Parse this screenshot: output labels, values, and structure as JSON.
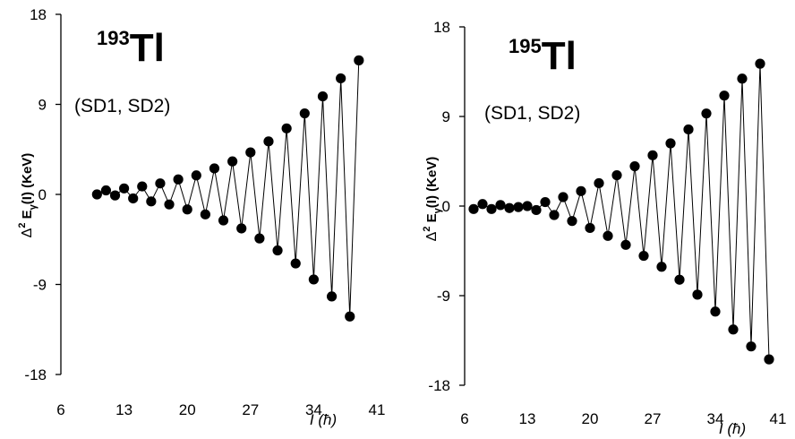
{
  "chart_data": [
    {
      "type": "scatter",
      "nucleus_mass": "193",
      "nucleus_element": "Tl",
      "band_label": "(SD1, SD2)",
      "ylabel_prefix": "Δ",
      "ylabel_sup": "2",
      "ylabel_main": " E",
      "ylabel_sub": "γ",
      "ylabel_rest": "(I) (KeV)",
      "xlabel_main": "I",
      "xlabel_unit": " (ħ)",
      "xlim": [
        6,
        41
      ],
      "ylim": [
        -18,
        18
      ],
      "xticks": [
        "6",
        "13",
        "20",
        "27",
        "34",
        "41"
      ],
      "yticks": [
        "-18",
        "-9",
        "0",
        "9",
        "18"
      ],
      "points": [
        [
          10,
          0.0
        ],
        [
          11,
          0.4
        ],
        [
          12,
          -0.1
        ],
        [
          13,
          0.6
        ],
        [
          14,
          -0.4
        ],
        [
          15,
          0.8
        ],
        [
          16,
          -0.7
        ],
        [
          17,
          1.1
        ],
        [
          18,
          -1.0
        ],
        [
          19,
          1.5
        ],
        [
          20,
          -1.5
        ],
        [
          21,
          1.9
        ],
        [
          22,
          -2.0
        ],
        [
          23,
          2.6
        ],
        [
          24,
          -2.6
        ],
        [
          25,
          3.3
        ],
        [
          26,
          -3.4
        ],
        [
          27,
          4.2
        ],
        [
          28,
          -4.4
        ],
        [
          29,
          5.3
        ],
        [
          30,
          -5.6
        ],
        [
          31,
          6.6
        ],
        [
          32,
          -6.9
        ],
        [
          33,
          8.1
        ],
        [
          34,
          -8.5
        ],
        [
          35,
          9.8
        ],
        [
          36,
          -10.2
        ],
        [
          37,
          11.6
        ],
        [
          38,
          -12.2
        ],
        [
          39,
          13.4
        ]
      ]
    },
    {
      "type": "scatter",
      "nucleus_mass": "195",
      "nucleus_element": "Tl",
      "band_label": "(SD1, SD2)",
      "ylabel_prefix": "Δ",
      "ylabel_sup": "2",
      "ylabel_main": " E",
      "ylabel_sub": "γ",
      "ylabel_rest": "(I) (KeV)",
      "xlabel_main": "I",
      "xlabel_unit": " (ħ)",
      "xlim": [
        6,
        41
      ],
      "ylim": [
        -18,
        18
      ],
      "xticks": [
        "6",
        "13",
        "20",
        "27",
        "34",
        "41"
      ],
      "yticks": [
        "-18",
        "-9",
        "0",
        "9",
        "18"
      ],
      "points": [
        [
          7,
          -0.3
        ],
        [
          8,
          0.2
        ],
        [
          9,
          -0.3
        ],
        [
          10,
          0.1
        ],
        [
          11,
          -0.2
        ],
        [
          12,
          -0.1
        ],
        [
          13,
          0.0
        ],
        [
          14,
          -0.4
        ],
        [
          15,
          0.4
        ],
        [
          16,
          -0.9
        ],
        [
          17,
          0.9
        ],
        [
          18,
          -1.5
        ],
        [
          19,
          1.5
        ],
        [
          20,
          -2.2
        ],
        [
          21,
          2.3
        ],
        [
          22,
          -3.0
        ],
        [
          23,
          3.1
        ],
        [
          24,
          -3.9
        ],
        [
          25,
          4.0
        ],
        [
          26,
          -5.0
        ],
        [
          27,
          5.1
        ],
        [
          28,
          -6.1
        ],
        [
          29,
          6.3
        ],
        [
          30,
          -7.4
        ],
        [
          31,
          7.7
        ],
        [
          32,
          -8.9
        ],
        [
          33,
          9.3
        ],
        [
          34,
          -10.6
        ],
        [
          35,
          11.1
        ],
        [
          36,
          -12.4
        ],
        [
          37,
          12.8
        ],
        [
          38,
          -14.1
        ],
        [
          39,
          14.3
        ],
        [
          40,
          -15.4
        ]
      ]
    }
  ]
}
